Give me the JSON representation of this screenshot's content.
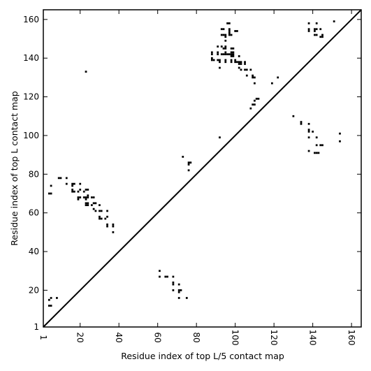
{
  "chart_data": {
    "type": "scatter",
    "xlabel": "Residue index of top L/5 contact map",
    "ylabel": "Residue index of top L contact map",
    "xlim": [
      1,
      165
    ],
    "ylim": [
      1,
      165
    ],
    "xticks": [
      1,
      20,
      40,
      60,
      80,
      100,
      120,
      140,
      160
    ],
    "yticks": [
      1,
      20,
      40,
      60,
      80,
      100,
      120,
      140,
      160
    ],
    "xtick_rotation": -90,
    "diagonal": {
      "from": [
        1,
        1
      ],
      "to": [
        165,
        165
      ]
    },
    "grid": false,
    "legend": "none",
    "marker": "square",
    "color": "#000000",
    "series": [
      {
        "region": "upper-left (top L contacts)",
        "points": [
          [
            4,
            70
          ],
          [
            5,
            70
          ],
          [
            5,
            74
          ],
          [
            9,
            78
          ],
          [
            10,
            78
          ],
          [
            13,
            75
          ],
          [
            13,
            78
          ],
          [
            16,
            71
          ],
          [
            16,
            72
          ],
          [
            16,
            74
          ],
          [
            16,
            75
          ],
          [
            17,
            71
          ],
          [
            17,
            75
          ],
          [
            19,
            67
          ],
          [
            19,
            68
          ],
          [
            19,
            71
          ],
          [
            20,
            68
          ],
          [
            20,
            72
          ],
          [
            20,
            75
          ],
          [
            22,
            68
          ],
          [
            22,
            71
          ],
          [
            23,
            64
          ],
          [
            23,
            65
          ],
          [
            23,
            67
          ],
          [
            23,
            68
          ],
          [
            23,
            72
          ],
          [
            24,
            64
          ],
          [
            24,
            65
          ],
          [
            24,
            68
          ],
          [
            24,
            69
          ],
          [
            24,
            72
          ],
          [
            26,
            64
          ],
          [
            26,
            68
          ],
          [
            27,
            62
          ],
          [
            27,
            65
          ],
          [
            27,
            68
          ],
          [
            28,
            61
          ],
          [
            28,
            65
          ],
          [
            30,
            57
          ],
          [
            30,
            58
          ],
          [
            30,
            61
          ],
          [
            30,
            64
          ],
          [
            31,
            57
          ],
          [
            31,
            61
          ],
          [
            33,
            57
          ],
          [
            34,
            53
          ],
          [
            34,
            54
          ],
          [
            34,
            58
          ],
          [
            34,
            61
          ],
          [
            37,
            50
          ],
          [
            37,
            53
          ],
          [
            37,
            54
          ],
          [
            23,
            133
          ],
          [
            92,
            99
          ],
          [
            108,
            114
          ],
          [
            109,
            116
          ],
          [
            110,
            116
          ],
          [
            110,
            118
          ],
          [
            111,
            119
          ],
          [
            112,
            119
          ],
          [
            119,
            127
          ],
          [
            122,
            130
          ],
          [
            88,
            139
          ],
          [
            88,
            140
          ],
          [
            88,
            142
          ],
          [
            88,
            143
          ],
          [
            89,
            139
          ],
          [
            91,
            139
          ],
          [
            91,
            142
          ],
          [
            91,
            143
          ],
          [
            91,
            146
          ],
          [
            92,
            135
          ],
          [
            92,
            138
          ],
          [
            92,
            139
          ],
          [
            93,
            142
          ],
          [
            93,
            146
          ],
          [
            93,
            152
          ],
          [
            93,
            155
          ],
          [
            94,
            142
          ],
          [
            94,
            145
          ],
          [
            94,
            152
          ],
          [
            94,
            155
          ],
          [
            95,
            138
          ],
          [
            95,
            139
          ],
          [
            95,
            142
          ],
          [
            95,
            143
          ],
          [
            95,
            145
          ],
          [
            95,
            146
          ],
          [
            95,
            149
          ],
          [
            95,
            151
          ],
          [
            95,
            152
          ],
          [
            96,
            142
          ],
          [
            96,
            158
          ],
          [
            97,
            142
          ],
          [
            97,
            152
          ],
          [
            97,
            153
          ],
          [
            97,
            154
          ],
          [
            97,
            155
          ],
          [
            97,
            158
          ],
          [
            98,
            138
          ],
          [
            98,
            139
          ],
          [
            98,
            141
          ],
          [
            98,
            142
          ],
          [
            98,
            143
          ],
          [
            98,
            145
          ],
          [
            98,
            152
          ],
          [
            99,
            141
          ],
          [
            99,
            142
          ],
          [
            99,
            143
          ],
          [
            99,
            145
          ],
          [
            100,
            138
          ],
          [
            100,
            139
          ],
          [
            100,
            154
          ],
          [
            101,
            138
          ],
          [
            101,
            154
          ],
          [
            102,
            135
          ],
          [
            102,
            137
          ],
          [
            102,
            138
          ],
          [
            102,
            141
          ],
          [
            103,
            134
          ],
          [
            103,
            137
          ],
          [
            103,
            138
          ],
          [
            105,
            134
          ],
          [
            105,
            137
          ],
          [
            105,
            138
          ],
          [
            106,
            131
          ],
          [
            106,
            134
          ],
          [
            108,
            134
          ],
          [
            109,
            130
          ],
          [
            109,
            131
          ],
          [
            110,
            127
          ],
          [
            110,
            130
          ],
          [
            138,
            154
          ],
          [
            138,
            155
          ],
          [
            138,
            158
          ],
          [
            141,
            152
          ],
          [
            141,
            154
          ],
          [
            141,
            155
          ],
          [
            142,
            152
          ],
          [
            142,
            155
          ],
          [
            142,
            158
          ],
          [
            144,
            151
          ],
          [
            144,
            155
          ],
          [
            145,
            151
          ],
          [
            145,
            152
          ],
          [
            151,
            159
          ]
        ]
      },
      {
        "region": "lower-right (top L/5 contacts)",
        "points": [
          [
            4,
            12
          ],
          [
            4,
            15
          ],
          [
            5,
            12
          ],
          [
            5,
            16
          ],
          [
            8,
            16
          ],
          [
            61,
            27
          ],
          [
            61,
            30
          ],
          [
            64,
            27
          ],
          [
            65,
            27
          ],
          [
            68,
            20
          ],
          [
            68,
            23
          ],
          [
            68,
            24
          ],
          [
            68,
            27
          ],
          [
            71,
            16
          ],
          [
            71,
            19
          ],
          [
            71,
            20
          ],
          [
            71,
            23
          ],
          [
            72,
            20
          ],
          [
            73,
            89
          ],
          [
            75,
            16
          ],
          [
            76,
            82
          ],
          [
            76,
            85
          ],
          [
            76,
            86
          ],
          [
            77,
            86
          ],
          [
            130,
            110
          ],
          [
            134,
            106
          ],
          [
            134,
            107
          ],
          [
            138,
            92
          ],
          [
            138,
            99
          ],
          [
            138,
            102
          ],
          [
            138,
            103
          ],
          [
            138,
            106
          ],
          [
            140,
            102
          ],
          [
            141,
            91
          ],
          [
            142,
            91
          ],
          [
            142,
            95
          ],
          [
            142,
            99
          ],
          [
            143,
            91
          ],
          [
            144,
            95
          ],
          [
            145,
            95
          ],
          [
            154,
            97
          ],
          [
            154,
            101
          ]
        ]
      }
    ]
  }
}
